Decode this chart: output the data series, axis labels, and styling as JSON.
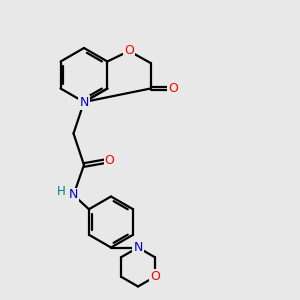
{
  "background_color": "#e8e8e8",
  "bond_color": "#000000",
  "atom_colors": {
    "O": "#ff0000",
    "N": "#0000cc",
    "H": "#008080",
    "C": "#000000"
  },
  "figsize": [
    3.0,
    3.0
  ],
  "dpi": 100
}
